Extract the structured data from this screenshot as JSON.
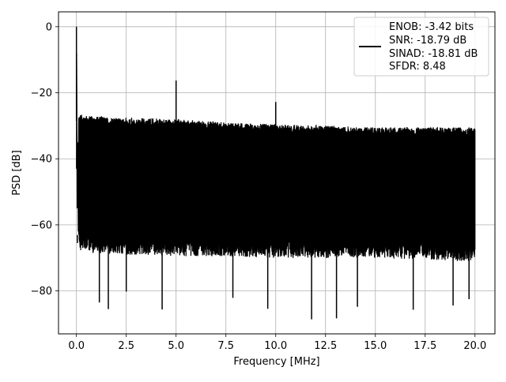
{
  "chart_data": {
    "type": "line",
    "title": "",
    "xlabel": "Frequency [MHz]",
    "ylabel": "PSD [dB]",
    "xlim": [
      -0.9,
      21.0
    ],
    "ylim": [
      -93.0,
      4.5
    ],
    "xticks": [
      0.0,
      2.5,
      5.0,
      7.5,
      10.0,
      12.5,
      15.0,
      17.5,
      20.0
    ],
    "xtick_labels": [
      "0.0",
      "2.5",
      "5.0",
      "7.5",
      "10.0",
      "12.5",
      "15.0",
      "17.5",
      "20.0"
    ],
    "yticks": [
      0,
      -20,
      -40,
      -60,
      -80
    ],
    "ytick_labels": [
      "0",
      "−20",
      "−40",
      "−60",
      "−80"
    ],
    "grid": true,
    "legend_position": "top-right",
    "legend": [
      "ENOB: -3.42 bits",
      "SNR: -18.79 dB",
      "SINAD: -18.81 dB",
      "SFDR: 8.48"
    ],
    "line_color": "#000000",
    "series": [
      {
        "noise_floor_envelope": {
          "x": [
            0.0,
            1.0,
            2.5,
            5.0,
            7.5,
            10.0,
            12.5,
            15.0,
            17.5,
            20.0
          ],
          "upper": [
            -26.5,
            -27.0,
            -27.5,
            -28.0,
            -29.0,
            -29.5,
            -30.0,
            -30.5,
            -30.5,
            -30.5
          ],
          "lower": [
            -65.0,
            -66.0,
            -66.5,
            -67.0,
            -67.0,
            -67.5,
            -67.5,
            -67.5,
            -68.0,
            -68.5
          ]
        },
        "peaks": [
          {
            "x": 0.0,
            "y": 0.0
          },
          {
            "x": 5.0,
            "y": -16.3
          },
          {
            "x": 10.0,
            "y": -22.8
          }
        ],
        "dips": [
          {
            "x": 0.05,
            "y": -65.5
          },
          {
            "x": 1.15,
            "y": -83.5
          },
          {
            "x": 1.6,
            "y": -85.5
          },
          {
            "x": 2.5,
            "y": -80.2
          },
          {
            "x": 4.3,
            "y": -85.6
          },
          {
            "x": 7.85,
            "y": -82.1
          },
          {
            "x": 9.6,
            "y": -85.4
          },
          {
            "x": 11.8,
            "y": -88.6
          },
          {
            "x": 13.05,
            "y": -88.3
          },
          {
            "x": 14.1,
            "y": -84.8
          },
          {
            "x": 16.9,
            "y": -85.7
          },
          {
            "x": 18.9,
            "y": -84.4
          },
          {
            "x": 19.7,
            "y": -82.5
          }
        ]
      }
    ]
  }
}
